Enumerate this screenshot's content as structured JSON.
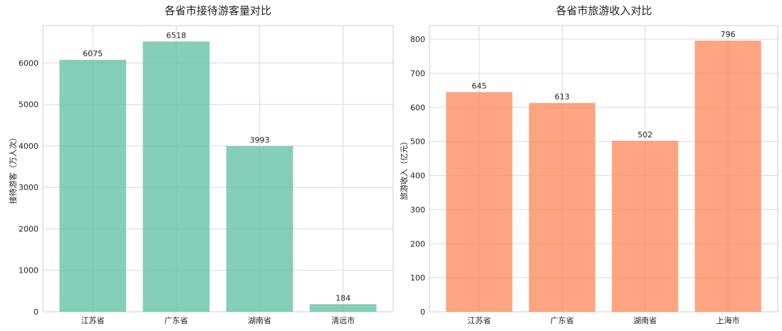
{
  "chart_data": [
    {
      "type": "bar",
      "title": "各省市接待游客量对比",
      "xlabel": "",
      "ylabel": "接待游客（万人次）",
      "categories": [
        "江苏省",
        "广东省",
        "湖南省",
        "清远市"
      ],
      "values": [
        6075,
        6518,
        3993,
        184
      ],
      "value_labels": [
        "6075",
        "6518",
        "3993",
        "184"
      ],
      "ylim": [
        0,
        6900
      ],
      "yticks": [
        0,
        1000,
        2000,
        3000,
        4000,
        5000,
        6000
      ],
      "ytick_labels": [
        "0",
        "1000",
        "2000",
        "3000",
        "4000",
        "5000",
        "6000"
      ],
      "bar_color": "#66c2a5",
      "grid": true,
      "legend": "none"
    },
    {
      "type": "bar",
      "title": "各省市旅游收入对比",
      "xlabel": "",
      "ylabel": "旅游收入（亿元）",
      "categories": [
        "江苏省",
        "广东省",
        "湖南省",
        "上海市"
      ],
      "values": [
        645,
        613,
        502,
        796
      ],
      "value_labels": [
        "645",
        "613",
        "502",
        "796"
      ],
      "ylim": [
        0,
        840
      ],
      "yticks": [
        0,
        100,
        200,
        300,
        400,
        500,
        600,
        700,
        800
      ],
      "ytick_labels": [
        "0",
        "100",
        "200",
        "300",
        "400",
        "500",
        "600",
        "700",
        "800"
      ],
      "bar_color": "#fc8d62",
      "grid": true,
      "legend": "none"
    }
  ]
}
